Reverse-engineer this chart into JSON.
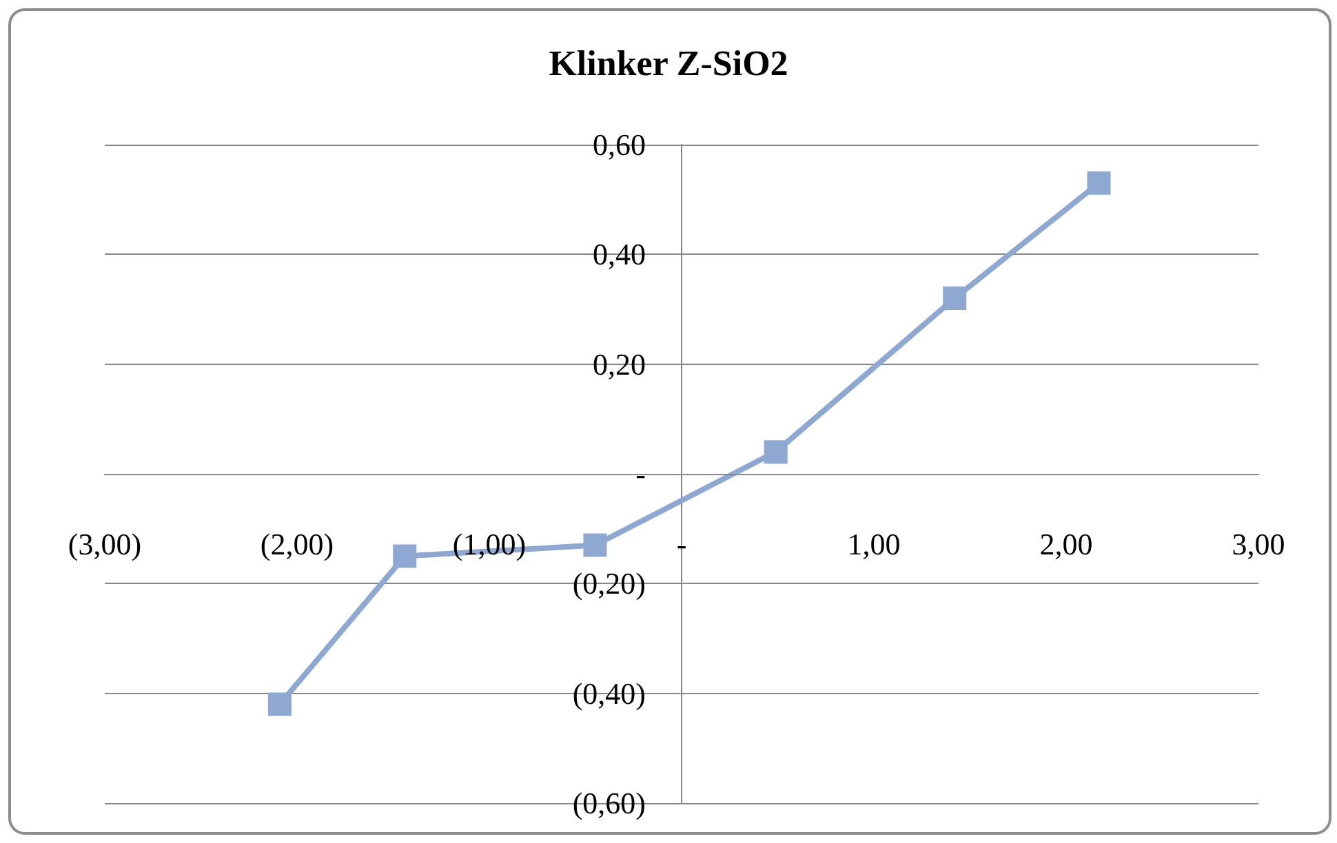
{
  "chart_data": {
    "type": "line",
    "title": "Klinker Z-SiO2",
    "x": [
      -2.09,
      -1.44,
      -0.45,
      0.49,
      1.42,
      2.17
    ],
    "series": [
      {
        "color": "#8ea8d2",
        "values": [
          -0.42,
          -0.15,
          -0.13,
          0.04,
          0.32,
          0.53
        ]
      }
    ],
    "xlim": [
      -3,
      3
    ],
    "xticks": [
      {
        "value": -3,
        "label": "(3,00)"
      },
      {
        "value": -2,
        "label": "(2,00)"
      },
      {
        "value": -1,
        "label": "(1,00)"
      },
      {
        "value": 0,
        "label": "-"
      },
      {
        "value": 1,
        "label": "1,00"
      },
      {
        "value": 2,
        "label": "2,00"
      },
      {
        "value": 3,
        "label": "3,00"
      }
    ],
    "ylim": [
      -0.6,
      0.6
    ],
    "yticks": [
      {
        "value": -0.6,
        "label": "(0,60)"
      },
      {
        "value": -0.4,
        "label": "(0,40)"
      },
      {
        "value": -0.2,
        "label": "(0,20)"
      },
      {
        "value": 0,
        "label": "-"
      },
      {
        "value": 0.2,
        "label": "0,20"
      },
      {
        "value": 0.4,
        "label": "0,40"
      },
      {
        "value": 0.6,
        "label": "0,60"
      }
    ],
    "grid": "y",
    "marker": "square",
    "line_style": "solid"
  }
}
